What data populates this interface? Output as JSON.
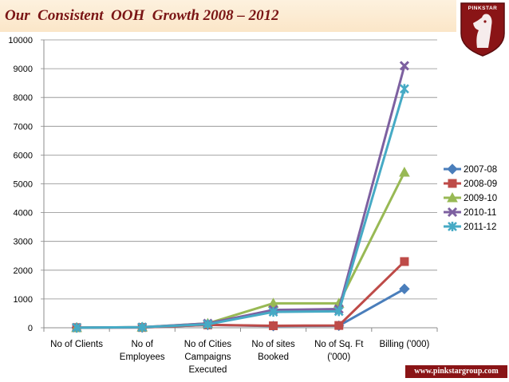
{
  "header": {
    "title": "Our  Consistent  OOH  Growth 2008 – 2012"
  },
  "logo": {
    "text": "PINKSTAR",
    "icon": "horse-head-shield-icon"
  },
  "footer": {
    "website": "www.pinkstargroup.com"
  },
  "colors": {
    "header_bg": "#fbe6c8",
    "title": "#7a1515",
    "brand": "#8a1416",
    "series": [
      "#4a7ebb",
      "#be4b48",
      "#98b954",
      "#7d60a0",
      "#46aac5"
    ]
  },
  "chart_data": {
    "type": "line",
    "title": "",
    "xlabel": "",
    "ylabel": "",
    "ylim": [
      0,
      10000
    ],
    "yticks": [
      0,
      1000,
      2000,
      3000,
      4000,
      5000,
      6000,
      7000,
      8000,
      9000,
      10000
    ],
    "grid": true,
    "legend_position": "right",
    "categories": [
      [
        "No of Clients"
      ],
      [
        "No of",
        "Employees"
      ],
      [
        "No of Cities",
        "Campaigns",
        "Executed"
      ],
      [
        "No of sites",
        "Booked"
      ],
      [
        "No of Sq. Ft",
        "('000)"
      ],
      [
        "Billing ('000)"
      ]
    ],
    "series": [
      {
        "name": "2007-08",
        "marker": "diamond",
        "values": [
          5,
          10,
          100,
          60,
          70,
          1350
        ]
      },
      {
        "name": "2008-09",
        "marker": "square",
        "values": [
          5,
          10,
          100,
          70,
          80,
          2300
        ]
      },
      {
        "name": "2009-10",
        "marker": "triangle",
        "values": [
          5,
          20,
          150,
          850,
          850,
          5400
        ]
      },
      {
        "name": "2010-11",
        "marker": "x",
        "values": [
          5,
          20,
          150,
          620,
          650,
          9100
        ]
      },
      {
        "name": "2011-12",
        "marker": "star",
        "values": [
          5,
          20,
          120,
          550,
          570,
          8300
        ]
      }
    ]
  }
}
